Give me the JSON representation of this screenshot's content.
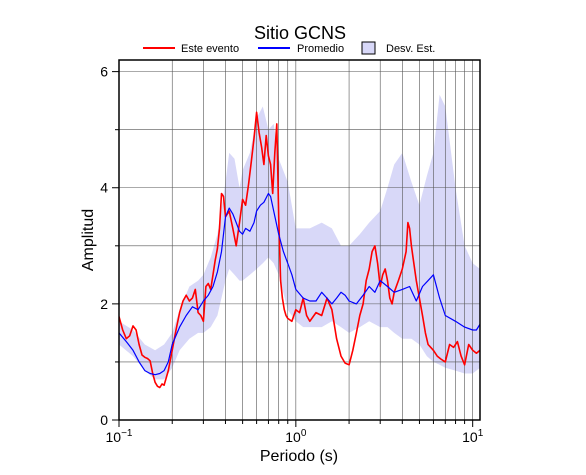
{
  "chart_data": {
    "type": "line",
    "title": "Sitio GCNS",
    "xlabel": "Periodo (s)",
    "ylabel": "Amplitud",
    "xscale": "log",
    "xlim": [
      0.1,
      11
    ],
    "ylim": [
      0,
      6.2
    ],
    "grid": true,
    "legend_position": "top",
    "x_ticks": [
      {
        "base": "10",
        "exp": "−1",
        "value": 0.1
      },
      {
        "base": "10",
        "exp": "0",
        "value": 1
      },
      {
        "base": "10",
        "exp": "1",
        "value": 10
      }
    ],
    "y_ticks": [
      {
        "label": "0",
        "value": 0
      },
      {
        "label": "2",
        "value": 2
      },
      {
        "label": "4",
        "value": 4
      },
      {
        "label": "6",
        "value": 6
      }
    ],
    "legend": [
      {
        "label": "Este evento",
        "kind": "line",
        "color": "#ff0000"
      },
      {
        "label": "Promedio",
        "kind": "line",
        "color": "#0000ff"
      },
      {
        "label": "Desv. Est.",
        "kind": "box",
        "color": "#d8d8f8"
      }
    ],
    "series": [
      {
        "name": "Este evento",
        "color": "#ff0000",
        "x": [
          0.1,
          0.105,
          0.11,
          0.115,
          0.12,
          0.125,
          0.13,
          0.135,
          0.14,
          0.145,
          0.15,
          0.155,
          0.16,
          0.165,
          0.17,
          0.175,
          0.18,
          0.19,
          0.2,
          0.21,
          0.22,
          0.23,
          0.24,
          0.25,
          0.26,
          0.27,
          0.28,
          0.29,
          0.3,
          0.31,
          0.32,
          0.33,
          0.34,
          0.35,
          0.36,
          0.37,
          0.38,
          0.39,
          0.4,
          0.42,
          0.44,
          0.46,
          0.48,
          0.5,
          0.52,
          0.54,
          0.56,
          0.58,
          0.6,
          0.62,
          0.64,
          0.66,
          0.68,
          0.7,
          0.72,
          0.74,
          0.76,
          0.78,
          0.8,
          0.82,
          0.84,
          0.86,
          0.88,
          0.9,
          0.95,
          1.0,
          1.05,
          1.1,
          1.15,
          1.2,
          1.3,
          1.4,
          1.5,
          1.6,
          1.7,
          1.8,
          1.9,
          2.0,
          2.1,
          2.2,
          2.3,
          2.4,
          2.5,
          2.6,
          2.7,
          2.8,
          2.9,
          3.0,
          3.1,
          3.2,
          3.3,
          3.4,
          3.5,
          3.6,
          3.8,
          4.0,
          4.2,
          4.3,
          4.4,
          4.5,
          4.6,
          4.8,
          5.0,
          5.2,
          5.4,
          5.6,
          5.8,
          6.0,
          6.3,
          6.6,
          7.0,
          7.4,
          7.8,
          8.2,
          8.6,
          9.0,
          9.5,
          10.0,
          10.5,
          11.0
        ],
        "values": [
          1.78,
          1.55,
          1.4,
          1.45,
          1.62,
          1.55,
          1.3,
          1.12,
          1.08,
          1.06,
          1.02,
          0.8,
          0.65,
          0.58,
          0.56,
          0.62,
          0.6,
          0.85,
          1.2,
          1.55,
          1.85,
          2.05,
          2.15,
          2.05,
          2.1,
          2.25,
          1.85,
          1.8,
          1.7,
          2.3,
          2.35,
          2.25,
          2.5,
          2.75,
          2.95,
          3.3,
          3.9,
          3.85,
          3.5,
          3.6,
          3.3,
          3.0,
          3.4,
          3.8,
          3.7,
          4.05,
          4.45,
          4.85,
          5.3,
          4.95,
          4.7,
          4.4,
          4.9,
          4.55,
          4.4,
          3.9,
          4.6,
          5.1,
          3.5,
          2.4,
          2.1,
          1.9,
          1.8,
          1.75,
          1.7,
          1.9,
          1.85,
          2.1,
          1.8,
          1.7,
          1.85,
          1.8,
          2.1,
          1.9,
          1.4,
          1.1,
          0.98,
          0.95,
          1.2,
          1.5,
          1.8,
          2.0,
          2.4,
          2.6,
          2.9,
          3.0,
          2.7,
          2.3,
          2.5,
          2.6,
          2.4,
          2.1,
          2.0,
          2.2,
          2.4,
          2.6,
          2.9,
          3.4,
          3.3,
          3.0,
          2.8,
          2.4,
          2.1,
          1.8,
          1.5,
          1.3,
          1.25,
          1.2,
          1.1,
          1.05,
          1.0,
          1.3,
          1.25,
          1.35,
          1.1,
          0.95,
          1.3,
          1.2,
          1.15,
          1.2
        ]
      },
      {
        "name": "Promedio",
        "color": "#0000ff",
        "x": [
          0.1,
          0.11,
          0.12,
          0.13,
          0.14,
          0.15,
          0.16,
          0.17,
          0.18,
          0.19,
          0.2,
          0.22,
          0.24,
          0.26,
          0.28,
          0.3,
          0.32,
          0.34,
          0.36,
          0.38,
          0.4,
          0.42,
          0.44,
          0.46,
          0.48,
          0.5,
          0.52,
          0.55,
          0.58,
          0.6,
          0.63,
          0.66,
          0.7,
          0.72,
          0.75,
          0.8,
          0.85,
          0.9,
          0.95,
          1.0,
          1.1,
          1.2,
          1.3,
          1.4,
          1.5,
          1.6,
          1.7,
          1.8,
          1.9,
          2.0,
          2.2,
          2.4,
          2.6,
          2.8,
          3.0,
          3.3,
          3.6,
          4.0,
          4.4,
          4.8,
          5.2,
          5.6,
          6.0,
          6.5,
          7.0,
          8.0,
          9.0,
          10.0,
          10.5,
          11.0
        ],
        "values": [
          1.5,
          1.35,
          1.2,
          1.0,
          0.85,
          0.8,
          0.78,
          0.8,
          0.85,
          1.0,
          1.3,
          1.6,
          1.8,
          1.95,
          1.9,
          2.05,
          2.15,
          2.3,
          2.55,
          2.9,
          3.5,
          3.65,
          3.55,
          3.4,
          3.25,
          3.2,
          3.3,
          3.25,
          3.4,
          3.6,
          3.7,
          3.75,
          3.9,
          3.85,
          3.6,
          3.2,
          2.9,
          2.7,
          2.5,
          2.25,
          2.1,
          2.05,
          2.05,
          2.2,
          2.1,
          2.0,
          2.1,
          2.2,
          2.15,
          2.05,
          2.0,
          2.15,
          2.3,
          2.2,
          2.4,
          2.3,
          2.2,
          2.25,
          2.3,
          2.05,
          2.3,
          2.4,
          2.5,
          2.1,
          1.8,
          1.7,
          1.6,
          1.55,
          1.55,
          1.65
        ]
      }
    ],
    "std_band": {
      "name": "Desv. Est.",
      "color": "#d8d8f8",
      "x": [
        0.1,
        0.12,
        0.14,
        0.16,
        0.18,
        0.2,
        0.22,
        0.25,
        0.28,
        0.3,
        0.33,
        0.36,
        0.4,
        0.42,
        0.45,
        0.48,
        0.5,
        0.55,
        0.6,
        0.65,
        0.7,
        0.75,
        0.8,
        0.9,
        1.0,
        1.1,
        1.2,
        1.4,
        1.6,
        1.8,
        2.0,
        2.3,
        2.6,
        3.0,
        3.3,
        3.6,
        4.0,
        4.5,
        5.0,
        5.5,
        6.0,
        6.5,
        7.0,
        8.0,
        9.0,
        10.0,
        11.0
      ],
      "upper": [
        1.7,
        1.55,
        1.3,
        1.2,
        1.3,
        1.5,
        1.9,
        2.3,
        2.4,
        2.5,
        2.8,
        3.2,
        4.1,
        4.6,
        4.5,
        4.0,
        4.3,
        4.6,
        5.2,
        5.4,
        5.0,
        5.1,
        4.5,
        4.1,
        3.3,
        3.3,
        3.3,
        3.4,
        3.3,
        3.0,
        3.0,
        3.2,
        3.4,
        3.6,
        4.0,
        4.4,
        4.6,
        4.1,
        3.7,
        4.2,
        4.6,
        5.6,
        5.4,
        4.0,
        3.0,
        2.7,
        2.6
      ],
      "lower": [
        1.3,
        1.1,
        0.85,
        0.7,
        0.7,
        0.9,
        1.2,
        1.4,
        1.5,
        1.5,
        1.6,
        1.8,
        2.4,
        2.6,
        2.5,
        2.4,
        2.4,
        2.5,
        2.6,
        2.7,
        2.8,
        2.7,
        2.5,
        1.9,
        1.7,
        1.6,
        1.6,
        1.6,
        1.7,
        1.6,
        1.5,
        1.6,
        1.7,
        1.6,
        1.6,
        1.5,
        1.4,
        1.4,
        1.3,
        1.1,
        1.0,
        0.95,
        0.9,
        0.85,
        0.8,
        0.8,
        0.9
      ]
    }
  }
}
